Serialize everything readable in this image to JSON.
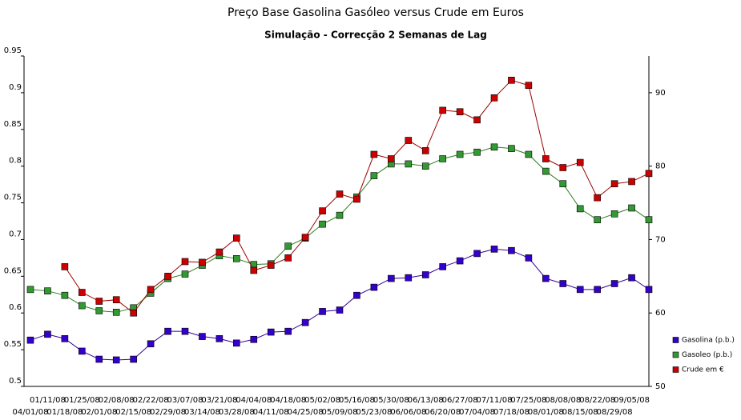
{
  "chart_data": {
    "type": "line",
    "title": "Preço Base Gasolina Gasóleo versus Crude em Euros",
    "subtitle": "Simulação - Correcção 2 Semanas de Lag",
    "categories": [
      "04/01/08",
      "01/11/08",
      "01/18/08",
      "01/25/08",
      "02/01/08",
      "02/08/08",
      "02/15/08",
      "02/22/08",
      "02/29/08",
      "03/07/08",
      "03/14/08",
      "03/21/08",
      "03/28/08",
      "04/04/08",
      "04/11/08",
      "04/18/08",
      "04/25/08",
      "05/02/08",
      "05/09/08",
      "05/16/08",
      "05/23/08",
      "05/30/08",
      "06/06/08",
      "06/13/08",
      "06/20/08",
      "06/27/08",
      "07/04/08",
      "07/11/08",
      "07/18/08",
      "07/25/08",
      "08/01/08",
      "08/08/08",
      "08/15/08",
      "08/22/08",
      "08/29/08",
      "09/05/08",
      null
    ],
    "series": [
      {
        "name": "Gasolina (p.b.)",
        "color": "#3300cc",
        "values": [
          0.563,
          0.571,
          0.565,
          0.548,
          0.537,
          0.536,
          0.537,
          0.558,
          0.575,
          0.575,
          0.568,
          0.565,
          0.559,
          0.564,
          0.574,
          0.575,
          0.587,
          0.602,
          0.604,
          0.624,
          0.635,
          0.647,
          0.648,
          0.652,
          0.663,
          0.671,
          0.681,
          0.687,
          0.685,
          0.675,
          0.647,
          0.64,
          0.632,
          0.632,
          0.64,
          0.648,
          0.632
        ]
      },
      {
        "name": "Gasoleo (p.b.)",
        "color": "#339933",
        "values": [
          0.632,
          0.63,
          0.624,
          0.61,
          0.603,
          0.601,
          0.607,
          0.627,
          0.647,
          0.653,
          0.665,
          0.678,
          0.674,
          0.666,
          0.667,
          0.691,
          0.702,
          0.721,
          0.733,
          0.758,
          0.787,
          0.803,
          0.803,
          0.8,
          0.81,
          0.816,
          0.819,
          0.826,
          0.824,
          0.816,
          0.793,
          0.776,
          0.742,
          0.727,
          0.735,
          0.743,
          0.727
        ]
      },
      {
        "name": "Crude em €",
        "color": "#cc0000",
        "axis": "y2",
        "values": [
          null,
          null,
          66.3,
          62.8,
          61.6,
          61.8,
          60.0,
          63.2,
          65.0,
          67.0,
          66.9,
          68.3,
          70.2,
          65.8,
          66.5,
          67.5,
          70.3,
          73.9,
          76.2,
          75.5,
          81.6,
          81.0,
          83.5,
          82.1,
          87.6,
          87.4,
          86.3,
          89.3,
          91.7,
          91.0,
          81.0,
          79.8,
          80.5,
          75.7,
          77.6,
          77.9,
          79.0
        ]
      }
    ],
    "ylim": [
      0.5,
      0.95
    ],
    "yticks": [
      0.5,
      0.55,
      0.6,
      0.65,
      0.7,
      0.75,
      0.8,
      0.85,
      0.9,
      0.95
    ],
    "y2lim": [
      50,
      95
    ],
    "y2ticks": [
      50,
      60,
      70,
      80,
      90
    ],
    "legend": "right"
  }
}
